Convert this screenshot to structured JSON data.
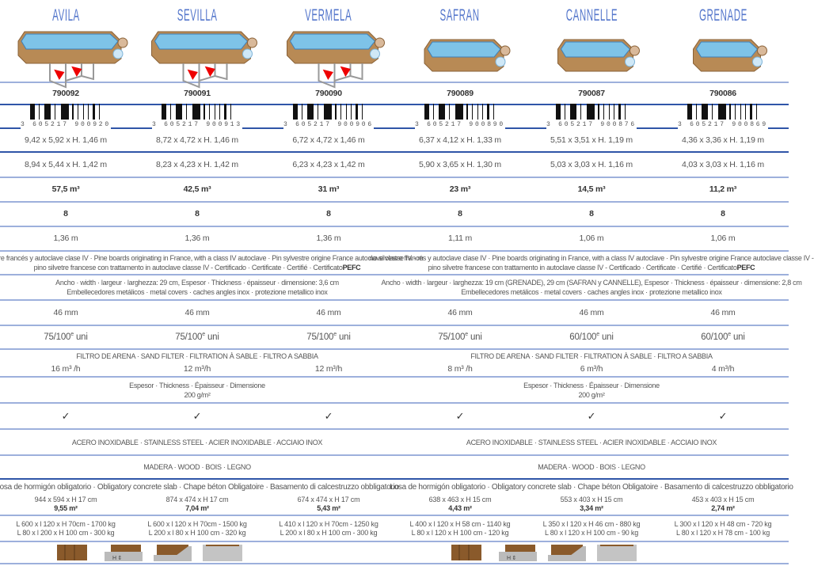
{
  "colors": {
    "title": "#5577cc",
    "line_light": "#9db0dc",
    "line_dark": "#2f55a8",
    "wood": "#b88a55",
    "water": "#7ec3e8"
  },
  "pools": [
    {
      "name": "AVILA",
      "code": "790092",
      "barcode": "3 605217 900920",
      "ext": "9,42 x 5,92 x H. 1,46 m",
      "int": "8,94 x 5,44 x H. 1,42 m",
      "volume": "57,5 m³",
      "count": "8",
      "depth": "1,36 m",
      "liner": "46 mm",
      "liner_gauge": "75/100",
      "filter": "16 m³ /h",
      "check": "✓",
      "slab": "944 x 594 x H 17 cm",
      "slab_area": "9,55 m²",
      "pack1": "L 600 x l 120 x H 70cm - 1700 kg",
      "pack2": "L 80 x l 200 x H 100 cm - 300 kg",
      "reinforced": true
    },
    {
      "name": "SEVILLA",
      "code": "790091",
      "barcode": "3 605217 900913",
      "ext": "8,72 x 4,72 x H. 1,46 m",
      "int": "8,23 x 4,23 x H. 1,42 m",
      "volume": "42,5 m³",
      "count": "8",
      "depth": "1,36 m",
      "liner": "46 mm",
      "liner_gauge": "75/100",
      "filter": "12 m³/h",
      "check": "✓",
      "slab": "874 x 474 x H 17 cm",
      "slab_area": "7,04 m²",
      "pack1": "L 600 x l 120 x H 70cm - 1500 kg",
      "pack2": "L 200 x l 80 x H 100 cm - 320 kg",
      "reinforced": true
    },
    {
      "name": "VERMELA",
      "code": "790090",
      "barcode": "3 605217 900906",
      "ext": "6,72 x 4,72 x 1,46 m",
      "int": "6,23 x 4,23 x 1,42 m",
      "volume": "31 m³",
      "count": "8",
      "depth": "1,36 m",
      "liner": "46 mm",
      "liner_gauge": "75/100",
      "filter": "12 m³/h",
      "check": "✓",
      "slab": "674 x 474 x H 17 cm",
      "slab_area": "5,43 m²",
      "pack1": "L 410 x l 120 x H 70cm - 1250 kg",
      "pack2": "L 200 x l 80 x H 100 cm - 300 kg",
      "reinforced": true
    },
    {
      "name": "SAFRAN",
      "code": "790089",
      "barcode": "3 605217 900890",
      "ext": "6,37 x 4,12 x H. 1,33 m",
      "int": "5,90 x 3,65 x H. 1,30 m",
      "volume": "23 m³",
      "count": "8",
      "depth": "1,11 m",
      "liner": "46 mm",
      "liner_gauge": "75/100",
      "filter": "8 m³ /h",
      "check": "✓",
      "slab": "638 x 463 x H 15 cm",
      "slab_area": "4,43 m²",
      "pack1": "L 400 x l 120 x H 58 cm - 1140 kg",
      "pack2": "L 80 x l 120 x H 100 cm - 120 kg",
      "reinforced": false
    },
    {
      "name": "CANNELLE",
      "code": "790087",
      "barcode": "3 605217 900876",
      "ext": "5,51 x 3,51 x H. 1,19 m",
      "int": "5,03 x 3,03 x H. 1,16 m",
      "volume": "14,5 m³",
      "count": "8",
      "depth": "1,06 m",
      "liner": "46 mm",
      "liner_gauge": "60/100",
      "filter": "6 m³/h",
      "check": "✓",
      "slab": "553 x 403 x H 15 cm",
      "slab_area": "3,34 m²",
      "pack1": "L 350 x l 120 x H 46 cm - 880 kg",
      "pack2": "L 80 x l 120 x H 100 cm - 90 kg",
      "reinforced": false
    },
    {
      "name": "GRENADE",
      "code": "790086",
      "barcode": "3 605217 900869",
      "ext": "4,36 x 3,36 x H. 1,19 m",
      "int": "4,03 x 3,03 x H. 1,16 m",
      "volume": "11,2 m³",
      "count": "8",
      "depth": "1,06 m",
      "liner": "46 mm",
      "liner_gauge": "60/100",
      "filter": "4 m³/h",
      "check": "✓",
      "slab": "453 x 403 x H 15 cm",
      "slab_area": "2,74 m²",
      "pack1": "L 300 x l 120 x H 48 cm - 720 kg",
      "pack2": "L 80 x l 120 x H 78 cm - 100 kg",
      "reinforced": false
    }
  ],
  "liner_suffix_sup": "e",
  "liner_unit": "uni",
  "left": {
    "wood1": "no silvestre francés y autoclave clase IV · Pine boards originating in France, with a class IV autoclave · Pin sylvestre origine France autoclave classe IV  -  m",
    "wood2a": "pino silvetre francese con trattamento in autoclave classe IV   -   Certificado · Certificate · Certifié · Certificato ",
    "wood2b": "PEFC",
    "board1": "Ancho · width · largeur · larghezza: 29 cm, Espesor · Thickness · épaisseur · dimensione: 3,6 cm",
    "board2": "Embellecedores metálicos · metal covers · caches angles inox · protezione metallico inox",
    "filter": "FILTRO DE ARENA · SAND FILTER · FILTRATION À SABLE · FILTRO A SABBIA",
    "felt1": "Espesor · Thickness · Épaisseur · Dimensione",
    "felt2": "200 g/m²",
    "steel": "ACERO INOXIDABLE · STAINLESS STEEL · ACIER INOXIDABLE · ACCIAIO INOX",
    "wood": "MADERA · WOOD · BOIS · LEGNO",
    "slab": "Losa de hormigón obligatorio · Obligatory concrete slab · Chape béton Obligatoire · Basamento di calcestruzzo obbligatorio"
  },
  "right": {
    "wood1": "no silvestre francés y autoclave clase IV · Pine boards originating in France, with a class IV autoclave · Pin sylvestre origine France autoclave classe IV  -",
    "wood2a": "pino silvetre francese con trattamento in autoclave classe IV   -   Certificado · Certificate · Certifié · Certificato ",
    "wood2b": "PEFC",
    "board1": "Ancho · width · largeur · larghezza: 19 cm (GRENADE), 29 cm (SAFRAN y CANNELLE),  Espesor · Thickness · épaisseur · dimensione: 2,8 cm",
    "board2": "Embellecedores metálicos · metal covers · caches angles inox · protezione metallico inox",
    "filter": "FILTRO DE ARENA · SAND FILTER · FILTRATION À SABLE · FILTRO A SABBIA",
    "felt1": "Espesor · Thickness · Épaisseur · Dimensione",
    "felt2": "200 g/m²",
    "steel": "ACERO INOXIDABLE · STAINLESS STEEL · ACIER INOXIDABLE · ACCIAIO INOX",
    "wood": "MADERA · WOOD · BOIS · LEGNO",
    "slab": "Losa de hormigón obligatorio · Obligatory concrete slab · Chape béton Obligatoire · Basamento di calcestruzzo obbligatorio"
  },
  "install_icons": [
    "above-ground-icon",
    "semi-buried-icon",
    "slope-icon",
    "in-ground-icon"
  ],
  "install_labels": [
    "H"
  ]
}
